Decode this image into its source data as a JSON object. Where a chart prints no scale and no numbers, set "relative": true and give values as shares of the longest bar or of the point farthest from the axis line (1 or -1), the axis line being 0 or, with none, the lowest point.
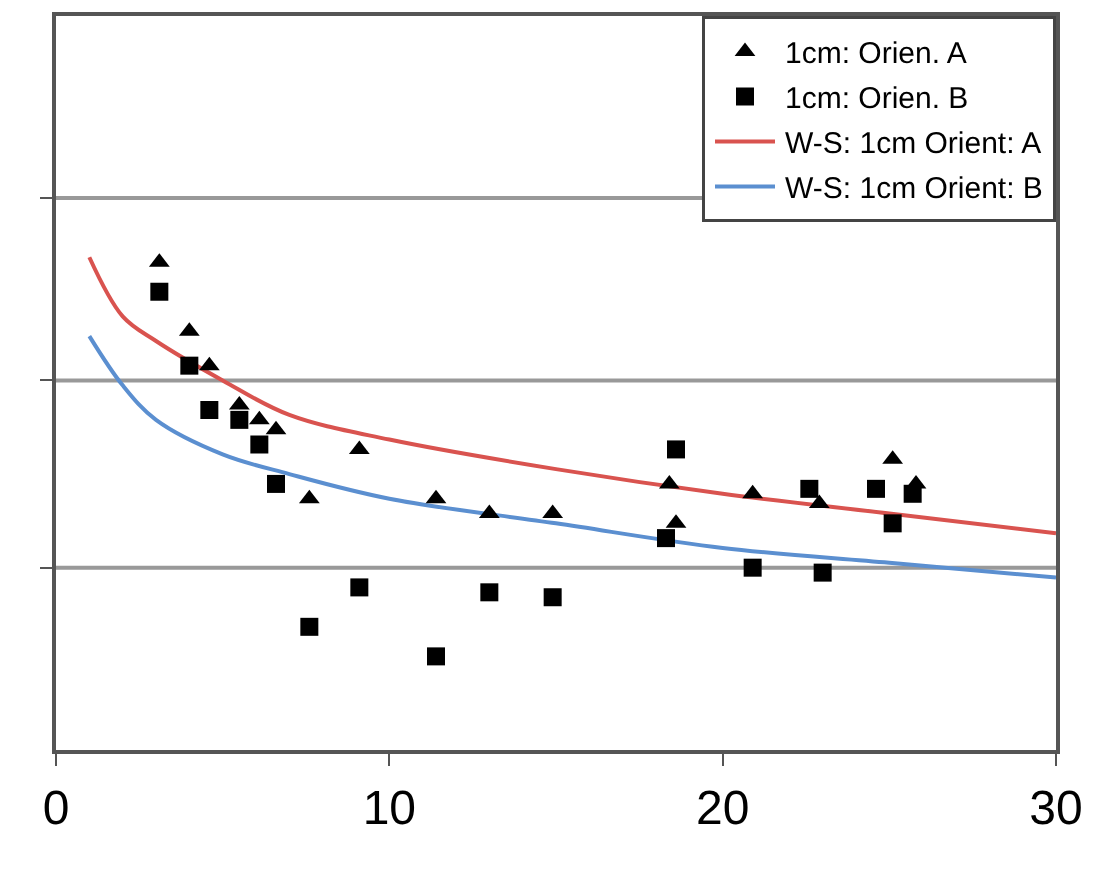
{
  "chart_data": {
    "type": "scatter",
    "relative": true,
    "xlim": [
      0,
      30
    ],
    "xticks": [
      0,
      10,
      20,
      30
    ],
    "tick_labels": "x",
    "legend": "top right",
    "ref_lines": [
      {
        "axis": "y",
        "value": 0.37,
        "color": "#999999"
      },
      {
        "axis": "y",
        "value": 0.75,
        "color": "#999999"
      },
      {
        "axis": "y",
        "value": 1.12,
        "color": "#999999"
      }
    ],
    "series": [
      {
        "name": "1cm: Orien. A",
        "marker": "triangle",
        "color": "#000000",
        "x": [
          3.1,
          4.0,
          4.6,
          5.5,
          6.1,
          6.6,
          7.6,
          9.1,
          11.4,
          13.0,
          14.9,
          18.4,
          18.6,
          20.9,
          22.9,
          25.1,
          25.8
        ],
        "values": [
          0.99,
          0.85,
          0.78,
          0.7,
          0.67,
          0.65,
          0.51,
          0.61,
          0.51,
          0.48,
          0.48,
          0.54,
          0.46,
          0.52,
          0.5,
          0.59,
          0.54
        ]
      },
      {
        "name": "1cm: Orien. B",
        "marker": "square",
        "color": "#000000",
        "x": [
          3.1,
          4.0,
          4.6,
          5.5,
          6.1,
          6.6,
          7.6,
          9.1,
          11.4,
          13.0,
          14.9,
          18.6,
          18.3,
          20.9,
          22.6,
          23.0,
          24.6,
          25.1,
          25.7
        ],
        "values": [
          0.93,
          0.78,
          0.69,
          0.67,
          0.62,
          0.54,
          0.25,
          0.33,
          0.19,
          0.32,
          0.31,
          0.61,
          0.43,
          0.37,
          0.53,
          0.36,
          0.53,
          0.46,
          0.52
        ]
      },
      {
        "name": "W-S: 1cm Orient: A",
        "type": "line",
        "marker": "none",
        "color": "#d9534f",
        "x": [
          1,
          2,
          3,
          5,
          7,
          10,
          15,
          20,
          25,
          30
        ],
        "values": [
          1.0,
          0.88,
          0.83,
          0.75,
          0.68,
          0.63,
          0.57,
          0.52,
          0.48,
          0.44
        ]
      },
      {
        "name": "W-S: 1cm Orient: B",
        "type": "line",
        "marker": "none",
        "color": "#5b8fd0",
        "x": [
          1,
          2,
          3,
          5,
          7,
          10,
          15,
          20,
          25,
          30
        ],
        "values": [
          0.84,
          0.74,
          0.67,
          0.6,
          0.56,
          0.51,
          0.46,
          0.41,
          0.38,
          0.35
        ]
      }
    ]
  }
}
